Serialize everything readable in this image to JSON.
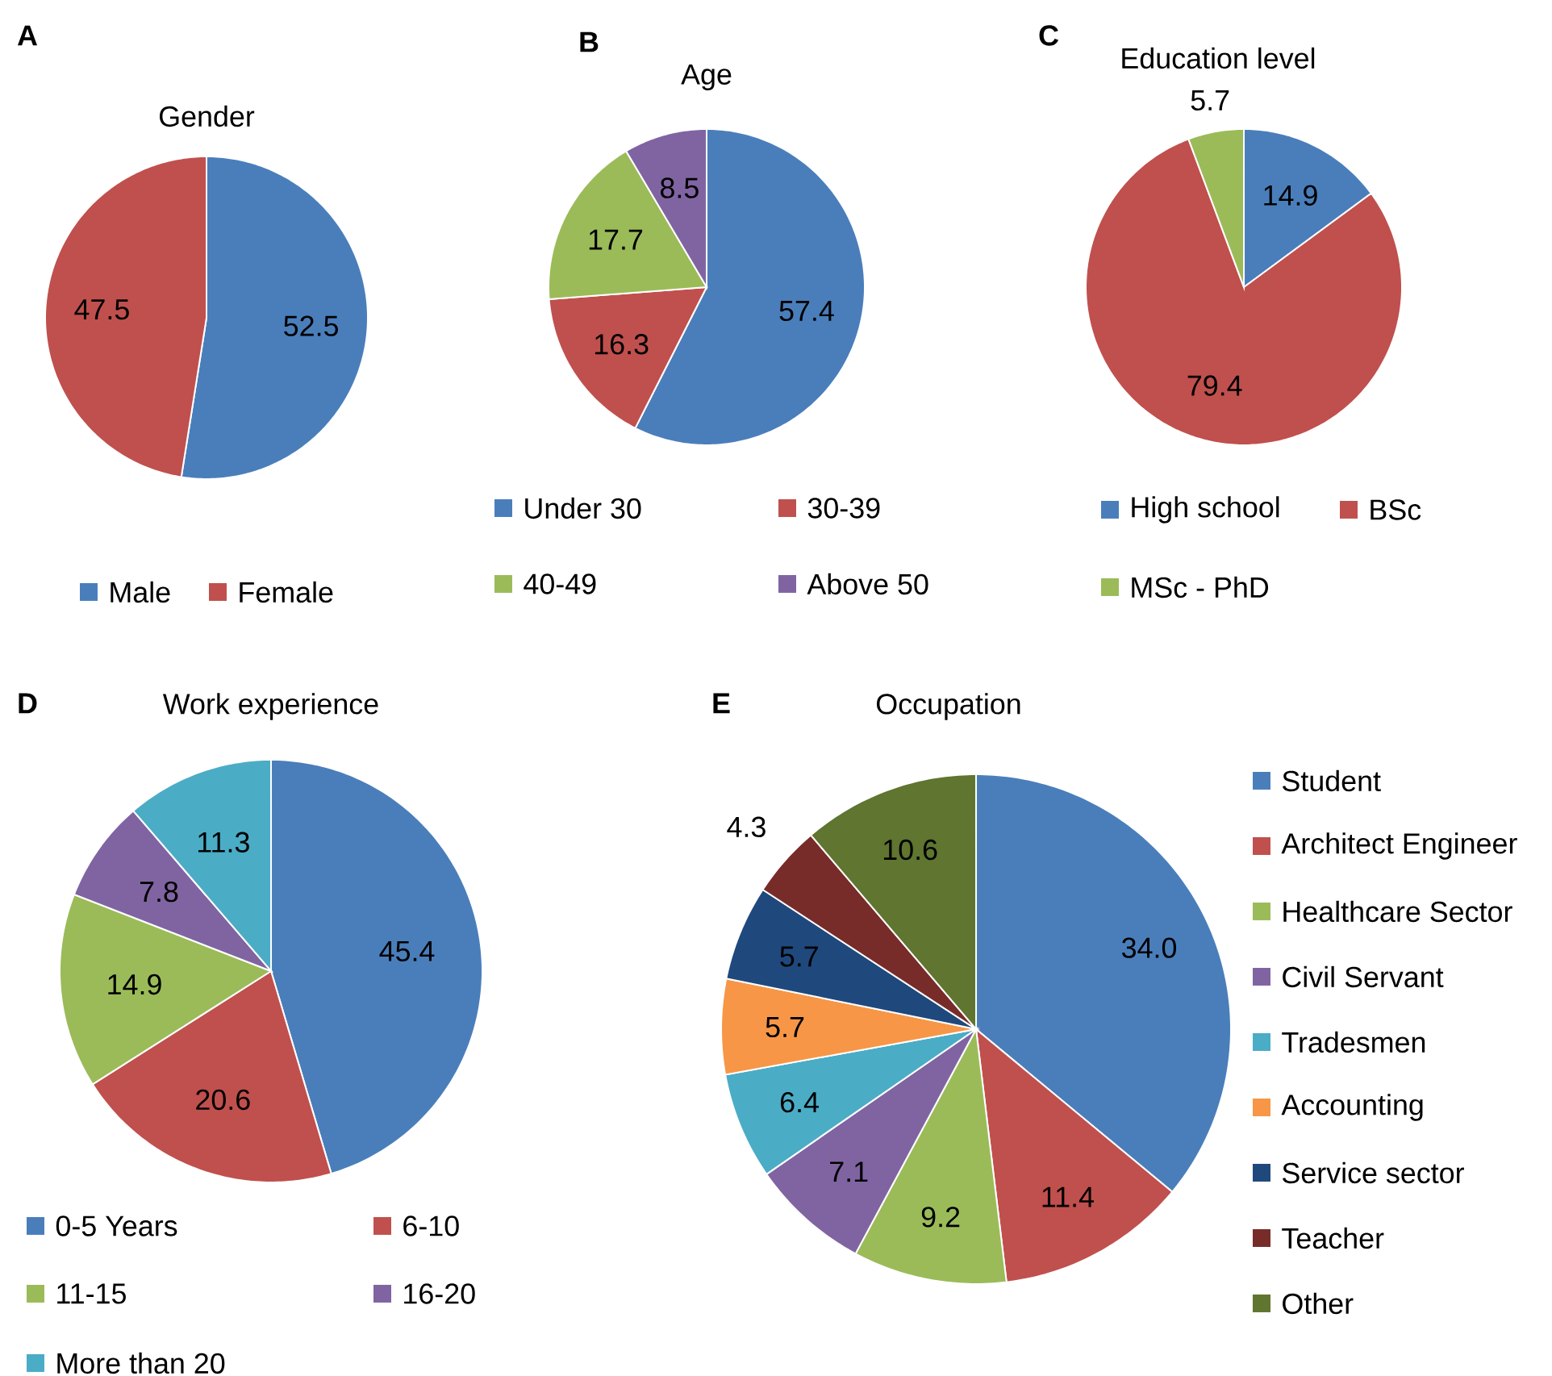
{
  "chart_data": [
    {
      "type": "pie",
      "title": "Gender",
      "annotations": [
        "A"
      ],
      "categories": [
        "Male",
        "Female"
      ],
      "values": [
        52.5,
        47.5
      ],
      "colors": [
        "#4a7ebb",
        "#c0504d"
      ],
      "data_labels": true,
      "legend": "bottom"
    },
    {
      "type": "pie",
      "title": "Age",
      "annotations": [
        "B"
      ],
      "categories": [
        "Under 30",
        "30-39",
        "40-49",
        "Above 50"
      ],
      "values": [
        57.4,
        16.3,
        17.7,
        8.5
      ],
      "colors": [
        "#4a7ebb",
        "#c0504d",
        "#9bbb59",
        "#8064a2"
      ],
      "data_labels": true,
      "legend": "bottom"
    },
    {
      "type": "pie",
      "title": "Education level",
      "annotations": [
        "C"
      ],
      "categories": [
        "High school",
        "BSc",
        "MSc - PhD"
      ],
      "values": [
        14.9,
        79.4,
        5.7
      ],
      "colors": [
        "#4a7ebb",
        "#c0504d",
        "#9bbb59"
      ],
      "data_labels": true,
      "legend": "bottom"
    },
    {
      "type": "pie",
      "title": "Work experience",
      "annotations": [
        "D"
      ],
      "categories": [
        "0-5 Years",
        "6-10",
        "11-15",
        "16-20",
        "More than 20"
      ],
      "values": [
        45.4,
        20.6,
        14.9,
        7.8,
        11.3
      ],
      "colors": [
        "#4a7ebb",
        "#c0504d",
        "#9bbb59",
        "#8064a2",
        "#4bacc6"
      ],
      "data_labels": true,
      "legend": "bottom"
    },
    {
      "type": "pie",
      "title": "Occupation",
      "annotations": [
        "E"
      ],
      "categories": [
        "Student",
        "Architect Engineer",
        "Healthcare Sector",
        "Civil Servant",
        "Tradesmen",
        "Accounting",
        "Service sector",
        "Teacher",
        "Other"
      ],
      "values": [
        34.0,
        11.4,
        9.2,
        7.1,
        6.4,
        5.7,
        5.7,
        4.3,
        10.6
      ],
      "colors": [
        "#4a7ebb",
        "#c0504d",
        "#9bbb59",
        "#8064a2",
        "#4bacc6",
        "#f79646",
        "#1f497d",
        "#772c2a",
        "#5f7530"
      ],
      "value_labels": [
        "34.0",
        "11.4",
        "9.2",
        "7.1",
        "6.4",
        "5.7",
        "5.7",
        "4.3",
        "10.6"
      ],
      "legend": "right"
    }
  ]
}
